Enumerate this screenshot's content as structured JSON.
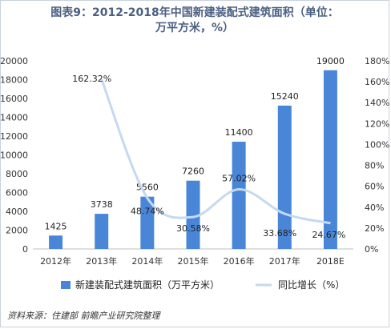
{
  "title": "图表9：2012-2018年中国新建装配式建筑面积（单位：万平方米，%）",
  "source": "资料来源：住建部  前瞻产业研究院整理",
  "chart_data": {
    "type": "bar",
    "categories": [
      "2012年",
      "2013年",
      "2014年",
      "2015年",
      "2016年",
      "2017年",
      "2018E"
    ],
    "series": [
      {
        "name": "新建装配式建筑面积（万平方米）",
        "type": "bar",
        "axis": "left",
        "color": "#4a86d8",
        "values": [
          1425,
          3738,
          5560,
          7260,
          11400,
          15240,
          19000
        ],
        "labels": [
          "1425",
          "3738",
          "5560",
          "7260",
          "11400",
          "15240",
          "19000"
        ]
      },
      {
        "name": "同比增长（%）",
        "type": "line",
        "axis": "right",
        "color": "#c6d9f1",
        "values": [
          null,
          162.32,
          48.74,
          30.58,
          57.02,
          33.68,
          24.67
        ],
        "labels": [
          "",
          "162.32%",
          "48.74%",
          "30.58%",
          "57.02%",
          "33.68%",
          "24.67%"
        ]
      }
    ],
    "y_left": {
      "min": 0,
      "max": 20000,
      "step": 2000,
      "ticks": [
        "0",
        "2000",
        "4000",
        "6000",
        "8000",
        "10000",
        "12000",
        "14000",
        "16000",
        "18000",
        "20000"
      ]
    },
    "y_right": {
      "min": 0,
      "max": 180,
      "step": 20,
      "ticks": [
        "0%",
        "20%",
        "40%",
        "60%",
        "80%",
        "100%",
        "120%",
        "140%",
        "160%",
        "180%"
      ]
    },
    "legend_position": "bottom",
    "grid": false
  }
}
